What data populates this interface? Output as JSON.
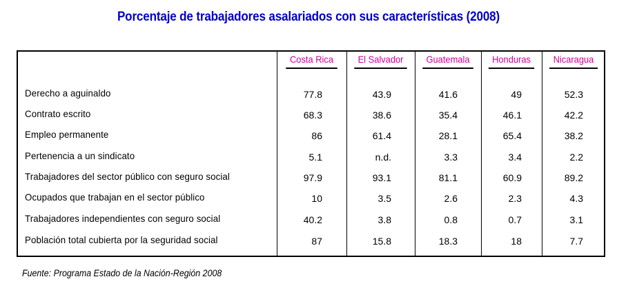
{
  "title": "Porcentaje de trabajadores asalariados con sus características (2008)",
  "columns": [
    "Costa Rica",
    "El Salvador",
    "Guatemala",
    "Honduras",
    "Nicaragua"
  ],
  "rows": [
    {
      "label": "Derecho a aguinaldo",
      "values": [
        "77.8",
        "43.9",
        "41.6",
        "49",
        "52.3"
      ]
    },
    {
      "label": "Contrato escrito",
      "values": [
        "68.3",
        "38.6",
        "35.4",
        "46.1",
        "42.2"
      ]
    },
    {
      "label": "Empleo permanente",
      "values": [
        "86",
        "61.4",
        "28.1",
        "65.4",
        "38.2"
      ]
    },
    {
      "label": "Pertenencia a un sindicato",
      "values": [
        "5.1",
        "n.d.",
        "3.3",
        "3.4",
        "2.2"
      ]
    },
    {
      "label": "Trabajadores del sector público con seguro social",
      "values": [
        "97.9",
        "93.1",
        "81.1",
        "60.9",
        "89.2"
      ]
    },
    {
      "label": "Ocupados que trabajan en el sector público",
      "values": [
        "10",
        "3.5",
        "2.6",
        "2.3",
        "4.3"
      ]
    },
    {
      "label": "Trabajadores independientes con seguro social",
      "values": [
        "40.2",
        "3.8",
        "0.8",
        "0.7",
        "3.1"
      ]
    },
    {
      "label": "Población total cubierta por la seguridad social",
      "values": [
        "87",
        "15.8",
        "18.3",
        "18",
        "7.7"
      ]
    }
  ],
  "source": "Fuente: Programa Estado de la Nación-Región 2008",
  "colors": {
    "title": "#0000cc",
    "header": "#cc0099"
  }
}
